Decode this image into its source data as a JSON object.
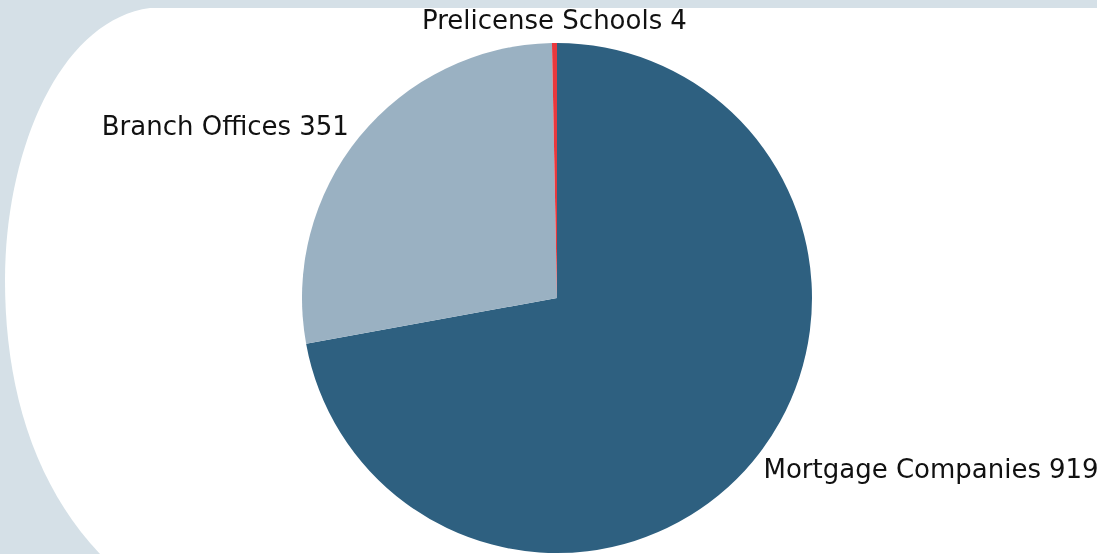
{
  "chart_data": {
    "type": "pie",
    "categories": [
      "Mortgage Companies",
      "Branch Offices",
      "Prelicense Schools"
    ],
    "values": [
      919,
      351,
      4
    ],
    "colors": [
      "#2e6080",
      "#9ab1c2",
      "#e8383d"
    ],
    "data_labels": true
  }
}
